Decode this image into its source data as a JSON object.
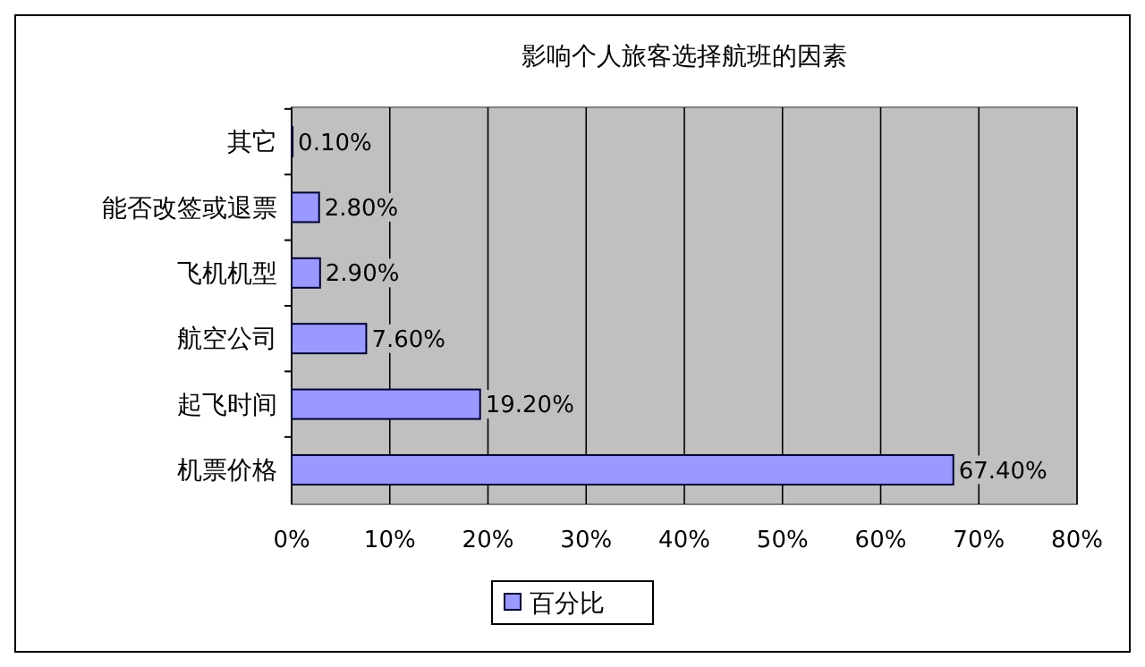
{
  "chart_data": {
    "type": "bar",
    "orientation": "horizontal",
    "title": "影响个人旅客选择航班的因素",
    "categories": [
      "其它",
      "能否改签或退票",
      "飞机机型",
      "航空公司",
      "起飞时间",
      "机票价格"
    ],
    "series": [
      {
        "name": "百分比",
        "color": "#9999ff",
        "values": [
          0.1,
          2.8,
          2.9,
          7.6,
          19.2,
          67.4
        ],
        "value_labels": [
          "0.10%",
          "2.80%",
          "2.90%",
          "7.60%",
          "19.20%",
          "67.40%"
        ]
      }
    ],
    "xlim": [
      0,
      80
    ],
    "xticks": [
      {
        "value": 0,
        "label": "0%"
      },
      {
        "value": 10,
        "label": "10%"
      },
      {
        "value": 20,
        "label": "20%"
      },
      {
        "value": 30,
        "label": "30%"
      },
      {
        "value": 40,
        "label": "40%"
      },
      {
        "value": 50,
        "label": "50%"
      },
      {
        "value": 60,
        "label": "60%"
      },
      {
        "value": 70,
        "label": "70%"
      },
      {
        "value": 80,
        "label": "80%"
      }
    ],
    "grid": "x",
    "legend": "bottom"
  }
}
